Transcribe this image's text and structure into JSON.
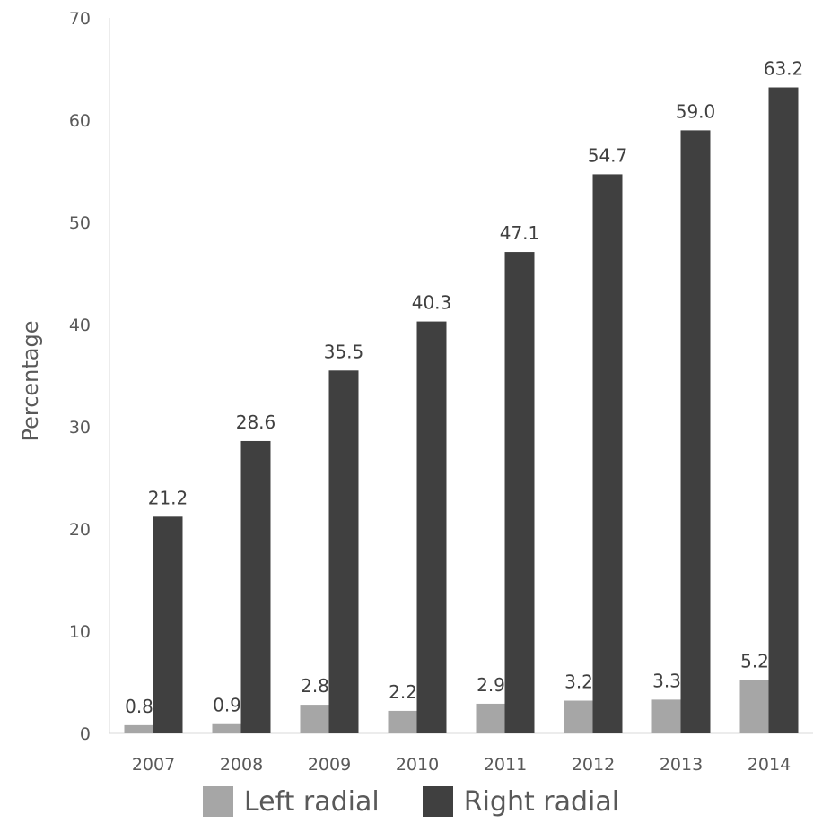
{
  "chart_data": {
    "type": "bar",
    "title": "",
    "xlabel": "",
    "ylabel": "Percentage",
    "ylim": [
      0,
      70
    ],
    "yticks": [
      0,
      10,
      20,
      30,
      40,
      50,
      60,
      70
    ],
    "grid": false,
    "legend_position": "bottom",
    "categories": [
      "2007",
      "2008",
      "2009",
      "2010",
      "2011",
      "2012",
      "2013",
      "2014"
    ],
    "series": [
      {
        "name": "Left radial",
        "color": "#a6a6a6",
        "values": [
          0.8,
          0.9,
          2.8,
          2.2,
          2.9,
          3.2,
          3.3,
          5.2
        ],
        "labels": [
          "0.8",
          "0.9",
          "2.8",
          "2.2",
          "2.9",
          "3.2",
          "3.3",
          "5.2"
        ]
      },
      {
        "name": "Right radial",
        "color": "#404040",
        "values": [
          21.2,
          28.6,
          35.5,
          40.3,
          47.1,
          54.7,
          59.0,
          63.2
        ],
        "labels": [
          "21.2",
          "28.6",
          "35.5",
          "40.3",
          "47.1",
          "54.7",
          "59.0",
          "63.2"
        ]
      }
    ]
  }
}
